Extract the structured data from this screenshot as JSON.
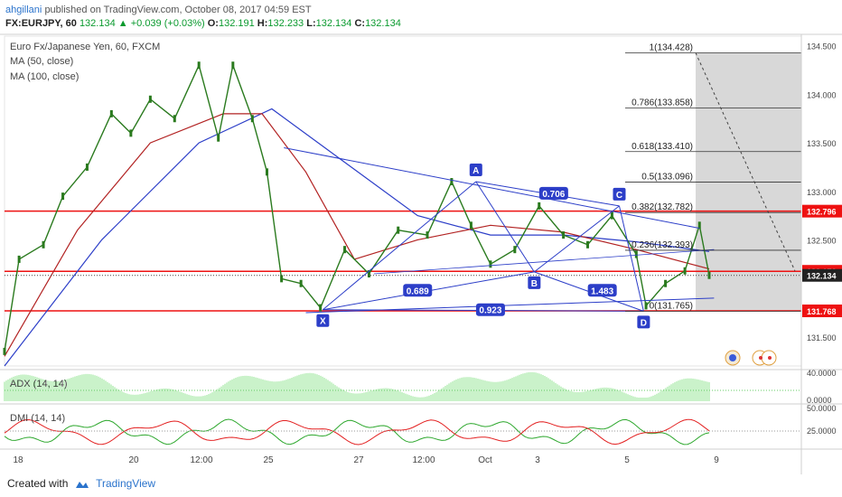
{
  "header": {
    "user": "ahgillani",
    "published": "published on TradingView.com, October 08, 2017 04:59 EST",
    "symbol_line": "FX:EURJPY, 60",
    "ohlc": [
      {
        "label": "",
        "value": "132.134"
      },
      {
        "label": "▲",
        "value": "+0.039 (+0.03%)"
      },
      {
        "label": "O:",
        "value": "132.191"
      },
      {
        "label": "H:",
        "value": "132.233"
      },
      {
        "label": "L:",
        "value": "132.134"
      },
      {
        "label": "C:",
        "value": "132.134"
      }
    ]
  },
  "legend": {
    "instrument": "Euro Fx/Japanese Yen, 60, FXCM",
    "ma50": "MA (50, close)",
    "ma100": "MA (100, close)",
    "adx": "ADX (14, 14)",
    "dmi": "DMI (14, 14)"
  },
  "footer": {
    "created_with": "Created with",
    "brand": "TradingView"
  },
  "colors": {
    "candle": "#2a7a1e",
    "ma50": "#b22222",
    "ma100": "#2c3ec8",
    "pattern": "#2c3ec8",
    "horizontal": "#ee1111",
    "adx": "#69d969",
    "dmi_plus": "#2ea82e",
    "dmi_minus": "#e32020"
  },
  "chart_data": {
    "type": "line",
    "title": "Euro Fx/Japanese Yen, 60, FXCM",
    "y_axis_ticks": [
      "134.500",
      "134.000",
      "133.500",
      "133.000",
      "132.500",
      "131.500"
    ],
    "ylim": [
      131.2,
      134.6
    ],
    "x_axis_ticks": [
      "18",
      "20",
      "12:00",
      "25",
      "27",
      "12:00",
      "Oct",
      "3",
      "5",
      "9"
    ],
    "price_series": [
      {
        "x": 0,
        "y": 131.35
      },
      {
        "x": 0.3,
        "y": 132.3
      },
      {
        "x": 0.8,
        "y": 132.45
      },
      {
        "x": 1.2,
        "y": 132.95
      },
      {
        "x": 1.7,
        "y": 133.25
      },
      {
        "x": 2.2,
        "y": 133.8
      },
      {
        "x": 2.6,
        "y": 133.6
      },
      {
        "x": 3.0,
        "y": 133.95
      },
      {
        "x": 3.5,
        "y": 133.75
      },
      {
        "x": 4.0,
        "y": 134.3
      },
      {
        "x": 4.4,
        "y": 133.55
      },
      {
        "x": 4.7,
        "y": 134.3
      },
      {
        "x": 5.1,
        "y": 133.75
      },
      {
        "x": 5.4,
        "y": 133.2
      },
      {
        "x": 5.7,
        "y": 132.1
      },
      {
        "x": 6.1,
        "y": 132.05
      },
      {
        "x": 6.5,
        "y": 131.8
      },
      {
        "x": 7.0,
        "y": 132.4
      },
      {
        "x": 7.5,
        "y": 132.15
      },
      {
        "x": 8.1,
        "y": 132.6
      },
      {
        "x": 8.7,
        "y": 132.55
      },
      {
        "x": 9.2,
        "y": 133.1
      },
      {
        "x": 9.6,
        "y": 132.65
      },
      {
        "x": 10.0,
        "y": 132.25
      },
      {
        "x": 10.5,
        "y": 132.4
      },
      {
        "x": 11.0,
        "y": 132.85
      },
      {
        "x": 11.5,
        "y": 132.55
      },
      {
        "x": 12.0,
        "y": 132.45
      },
      {
        "x": 12.5,
        "y": 132.75
      },
      {
        "x": 13.0,
        "y": 132.35
      },
      {
        "x": 13.2,
        "y": 131.82
      },
      {
        "x": 13.6,
        "y": 132.05
      },
      {
        "x": 14.0,
        "y": 132.18
      },
      {
        "x": 14.3,
        "y": 132.65
      },
      {
        "x": 14.5,
        "y": 132.134
      }
    ],
    "ma50": [
      {
        "x": 0,
        "y": 131.3
      },
      {
        "x": 1.5,
        "y": 132.6
      },
      {
        "x": 3.0,
        "y": 133.5
      },
      {
        "x": 4.5,
        "y": 133.8
      },
      {
        "x": 5.3,
        "y": 133.8
      },
      {
        "x": 6.2,
        "y": 133.2
      },
      {
        "x": 7.2,
        "y": 132.3
      },
      {
        "x": 8.5,
        "y": 132.5
      },
      {
        "x": 10.0,
        "y": 132.65
      },
      {
        "x": 11.5,
        "y": 132.58
      },
      {
        "x": 13.0,
        "y": 132.4
      },
      {
        "x": 14.5,
        "y": 132.2
      }
    ],
    "ma100": [
      {
        "x": 0,
        "y": 131.2
      },
      {
        "x": 2.0,
        "y": 132.5
      },
      {
        "x": 4.0,
        "y": 133.5
      },
      {
        "x": 5.5,
        "y": 133.85
      },
      {
        "x": 7.0,
        "y": 133.3
      },
      {
        "x": 8.5,
        "y": 132.75
      },
      {
        "x": 10.0,
        "y": 132.55
      },
      {
        "x": 11.5,
        "y": 132.55
      },
      {
        "x": 13.0,
        "y": 132.48
      },
      {
        "x": 14.5,
        "y": 132.38
      }
    ],
    "horizontal_levels": [
      {
        "value": 132.796,
        "label": "132.796"
      },
      {
        "value": 132.176,
        "label": "132.176"
      },
      {
        "value": 131.768,
        "label": "131.768"
      }
    ],
    "current_price": {
      "value": 132.134,
      "label": "132.134"
    },
    "harmonic_points": [
      {
        "name": "X",
        "x": 6.55,
        "y": 131.78
      },
      {
        "name": "A",
        "x": 9.7,
        "y": 133.1
      },
      {
        "name": "B",
        "x": 10.9,
        "y": 132.17
      },
      {
        "name": "C",
        "x": 12.65,
        "y": 132.85
      },
      {
        "name": "D",
        "x": 13.15,
        "y": 131.765
      }
    ],
    "harmonic_ratios": [
      {
        "label": "0.689",
        "x": 8.5,
        "y": 131.98
      },
      {
        "label": "0.706",
        "x": 11.3,
        "y": 132.98
      },
      {
        "label": "1.483",
        "x": 12.3,
        "y": 131.98
      },
      {
        "label": "0.923",
        "x": 10.0,
        "y": 131.78
      }
    ],
    "fib_levels": [
      {
        "label": "1(134.428)",
        "value": 134.428
      },
      {
        "label": "0.786(133.858)",
        "value": 133.858
      },
      {
        "label": "0.618(133.410)",
        "value": 133.41
      },
      {
        "label": "0.5(133.096)",
        "value": 133.096
      },
      {
        "label": "0.382(132.782)",
        "value": 132.782
      },
      {
        "label": "0.236(132.393)",
        "value": 132.393
      },
      {
        "label": "0(131.765)",
        "value": 131.765
      }
    ],
    "adx": {
      "label": "ADX (14, 14)",
      "ticks": [
        "40.0000",
        "0.0000"
      ]
    },
    "dmi": {
      "label": "DMI (14, 14)",
      "ticks": [
        "50.0000",
        "25.0000"
      ]
    }
  }
}
